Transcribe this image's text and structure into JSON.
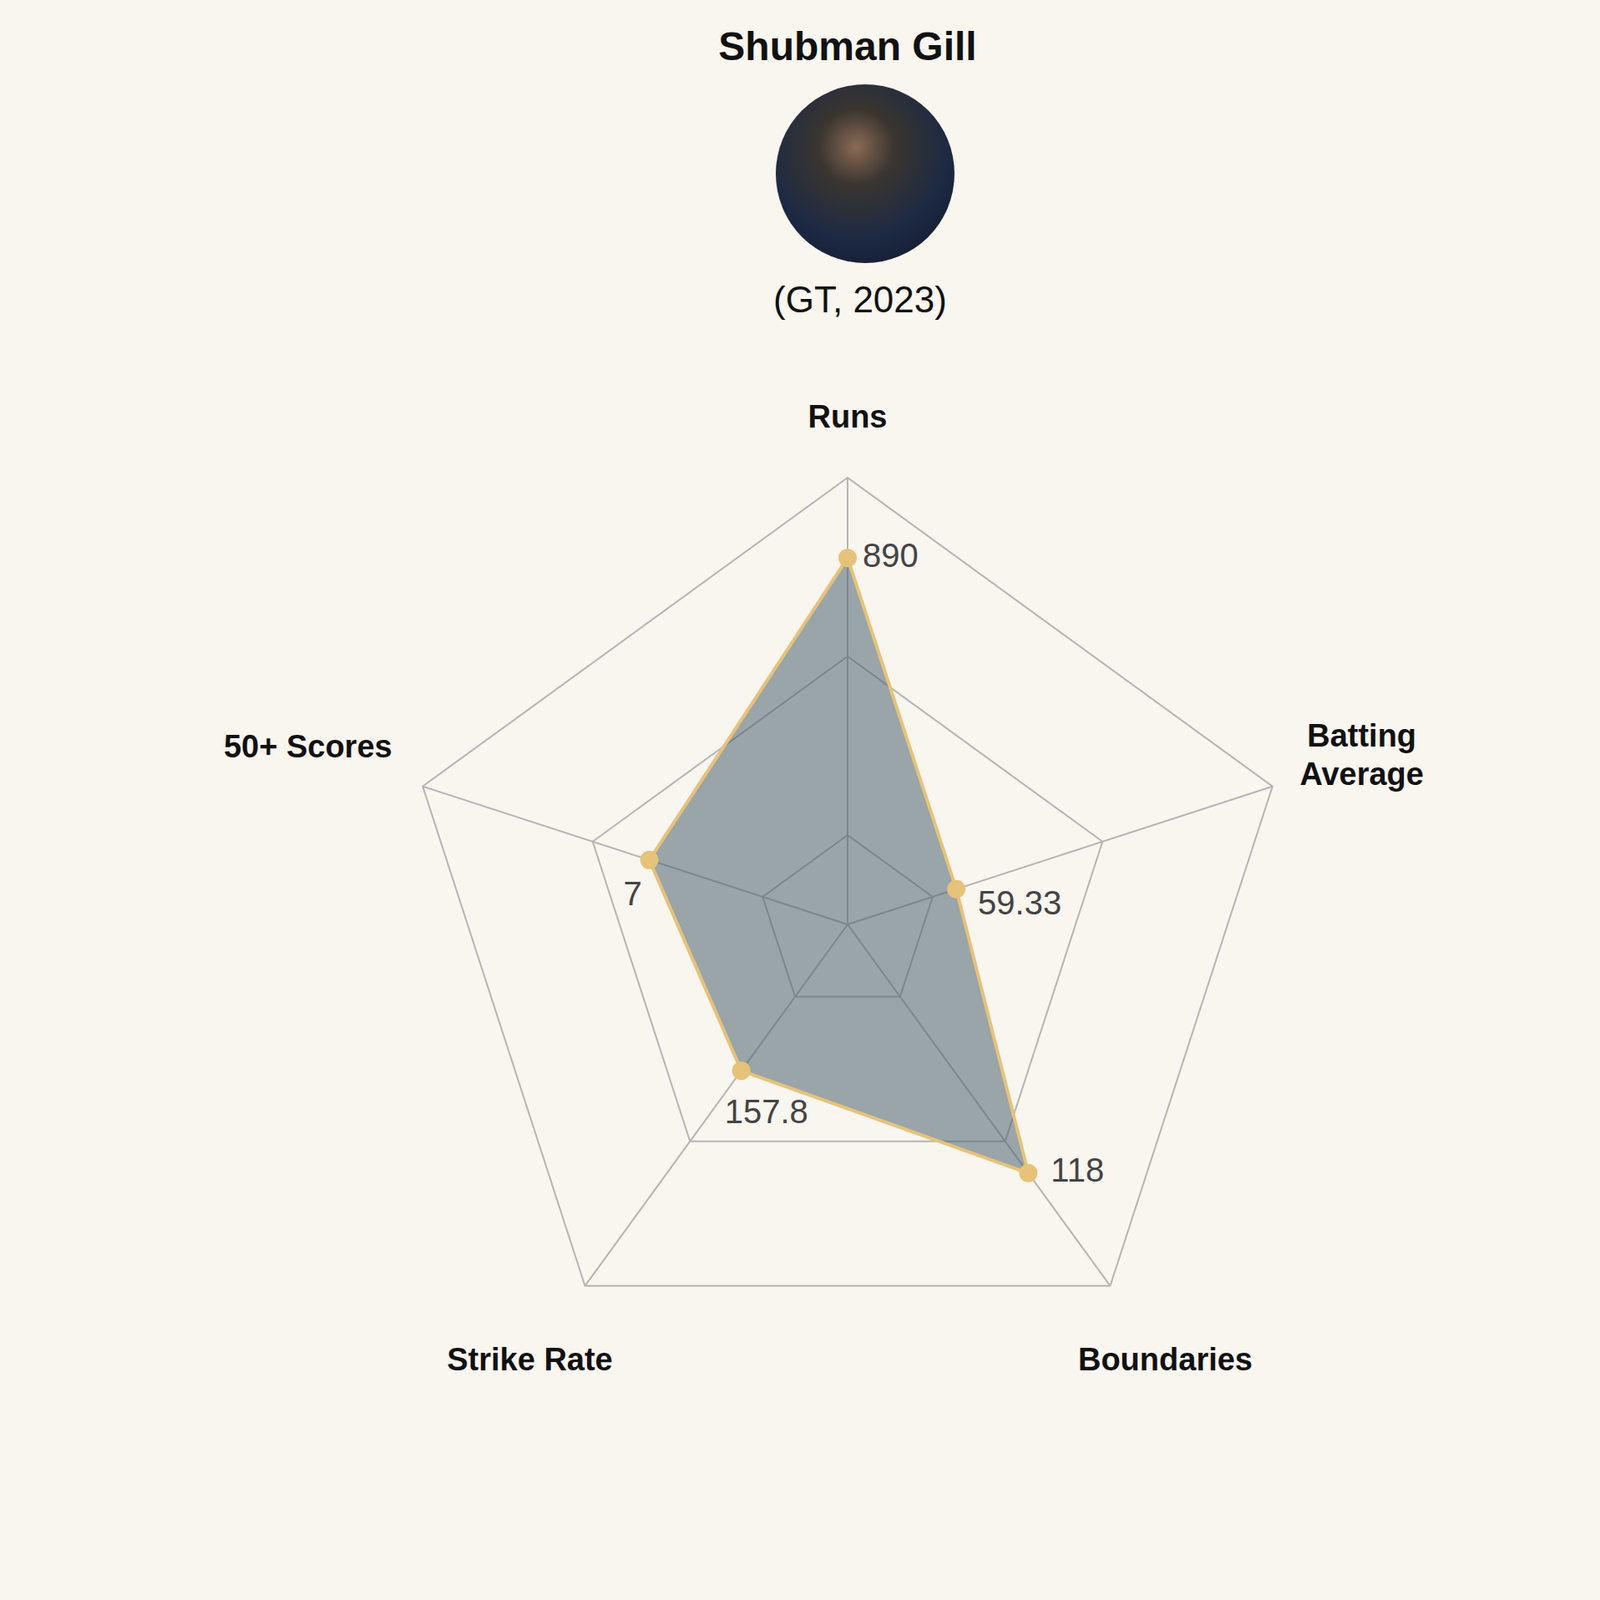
{
  "chart_data": {
    "type": "radar",
    "title": "Shubman Gill",
    "subtitle": "(GT, 2023)",
    "categories": [
      "Runs",
      "Batting Average",
      "Boundaries",
      "Strike Rate",
      "50+ Scores"
    ],
    "values": [
      890,
      59.33,
      118,
      157.8,
      7
    ],
    "axis_ranges": [
      [
        0,
        1085
      ],
      [
        0,
        232
      ],
      [
        0,
        171.5
      ],
      [
        0,
        390
      ],
      [
        0,
        15
      ]
    ],
    "color": "#e6c27a",
    "grid": true,
    "data_labels": true
  }
}
